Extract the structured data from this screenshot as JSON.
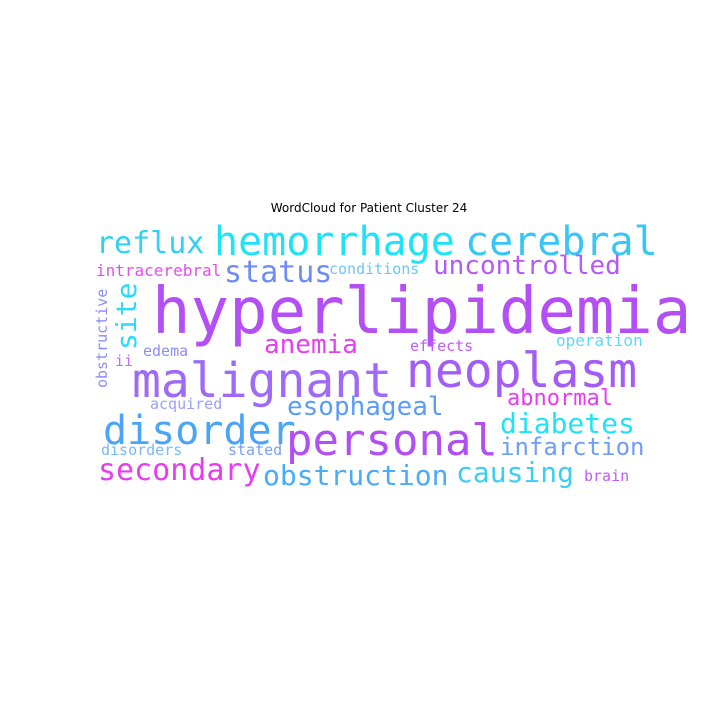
{
  "figure": {
    "title": "WordCloud for Patient Cluster 24"
  },
  "palette": {
    "purple": "#b44ff5",
    "violet": "#9e6af7",
    "cyan": "#1ee3f7",
    "sky": "#4aabf7",
    "magenta": "#e73cf0",
    "lilac": "#c25af3",
    "periwinkle": "#8c8cf6",
    "light_blue": "#6ec6f7"
  },
  "words": [
    {
      "text": "hyperlipidemia",
      "color": "#b44ff5"
    },
    {
      "text": "malignant",
      "color": "#9e6af7"
    },
    {
      "text": "neoplasm",
      "color": "#a35cf5"
    },
    {
      "text": "personal",
      "color": "#b14ff4"
    },
    {
      "text": "hemorrhage",
      "color": "#1ee3f7"
    },
    {
      "text": "cerebral",
      "color": "#38c6f7"
    },
    {
      "text": "disorder",
      "color": "#4aa5f7"
    },
    {
      "text": "reflux",
      "color": "#2fd1f7"
    },
    {
      "text": "status",
      "color": "#6f8bf6"
    },
    {
      "text": "uncontrolled",
      "color": "#b65af5"
    },
    {
      "text": "secondary",
      "color": "#e73cf0"
    },
    {
      "text": "obstruction",
      "color": "#4aabf7"
    },
    {
      "text": "causing",
      "color": "#3ccdf7"
    },
    {
      "text": "diabetes",
      "color": "#1ee3f7"
    },
    {
      "text": "esophageal",
      "color": "#5a9cf6"
    },
    {
      "text": "anemia",
      "color": "#e440f1"
    },
    {
      "text": "site",
      "color": "#2fd8f7"
    },
    {
      "text": "infarction",
      "color": "#6f9ef6"
    },
    {
      "text": "abnormal",
      "color": "#e73cf0"
    },
    {
      "text": "intracerebral",
      "color": "#e44cf2"
    },
    {
      "text": "conditions",
      "color": "#6ec6f7"
    },
    {
      "text": "operation",
      "color": "#5ed8f7"
    },
    {
      "text": "effects",
      "color": "#c25af3"
    },
    {
      "text": "edema",
      "color": "#8c8cf6"
    },
    {
      "text": "obstructive",
      "color": "#8c8cf6"
    },
    {
      "text": "ii",
      "color": "#c56df4"
    },
    {
      "text": "acquired",
      "color": "#9aa0f6"
    },
    {
      "text": "disorders",
      "color": "#7ab8f7"
    },
    {
      "text": "stated",
      "color": "#7a9ef6"
    },
    {
      "text": "brain",
      "color": "#c25af3"
    }
  ]
}
